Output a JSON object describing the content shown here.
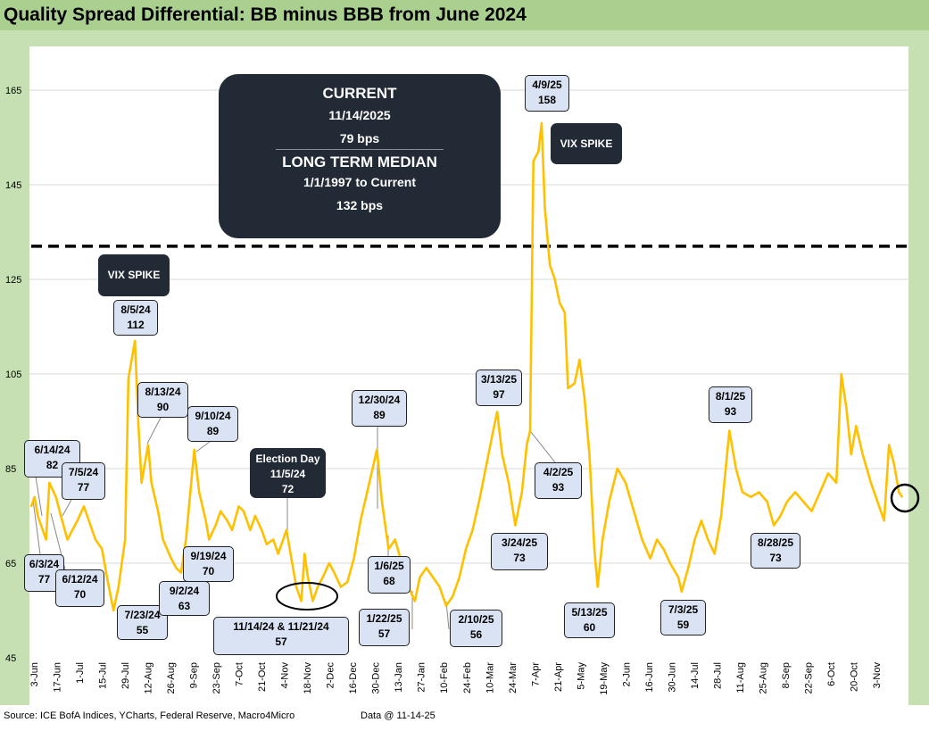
{
  "title": "Quality Spread Differential: BB minus BBB from June 2024",
  "source": "Source: ICE BofA Indices, YCharts, Federal Reserve, Macro4Micro",
  "data_as_of": "Data @ 11-14-25",
  "summary": {
    "current_heading": "CURRENT",
    "current_date": "11/14/2025",
    "current_value": "79 bps",
    "median_heading": "LONG TERM MEDIAN",
    "median_range": "1/1/1997 to Current",
    "median_value": "132 bps"
  },
  "vix_label_1": "VIX SPIKE",
  "vix_label_2": "VIX SPIKE",
  "election": {
    "line1": "Election Day",
    "line2": "11/5/24",
    "line3": "72"
  },
  "callouts": [
    {
      "date": "6/14/24",
      "value": "82"
    },
    {
      "date": "7/5/24",
      "value": "77"
    },
    {
      "date": "6/3/24",
      "value": "77"
    },
    {
      "date": "6/12/24",
      "value": "70"
    },
    {
      "date": "8/5/24",
      "value": "112"
    },
    {
      "date": "8/13/24",
      "value": "90"
    },
    {
      "date": "7/23/24",
      "value": "55"
    },
    {
      "date": "9/10/24",
      "value": "89"
    },
    {
      "date": "9/19/24",
      "value": "70"
    },
    {
      "date": "9/2/24",
      "value": "63"
    },
    {
      "date": "11/14/24 & 11/21/24",
      "value": "57"
    },
    {
      "date": "12/30/24",
      "value": "89"
    },
    {
      "date": "1/6/25",
      "value": "68"
    },
    {
      "date": "1/22/25",
      "value": "57"
    },
    {
      "date": "2/10/25",
      "value": "56"
    },
    {
      "date": "3/13/25",
      "value": "97"
    },
    {
      "date": "3/24/25",
      "value": "73"
    },
    {
      "date": "4/9/25",
      "value": "158"
    },
    {
      "date": "4/2/25",
      "value": "93"
    },
    {
      "date": "5/13/25",
      "value": "60"
    },
    {
      "date": "7/3/25",
      "value": "59"
    },
    {
      "date": "8/1/25",
      "value": "93"
    },
    {
      "date": "8/28/25",
      "value": "73"
    }
  ],
  "chart_data": {
    "type": "line",
    "title": "Quality Spread Differential: BB minus BBB from June 2024",
    "ylim": [
      45,
      170
    ],
    "yticks": [
      45,
      65,
      85,
      105,
      125,
      145,
      165
    ],
    "x_tick_labels": [
      "3-Jun",
      "17-Jun",
      "1-Jul",
      "15-Jul",
      "29-Jul",
      "12-Aug",
      "26-Aug",
      "9-Sep",
      "23-Sep",
      "7-Oct",
      "21-Oct",
      "4-Nov",
      "18-Nov",
      "2-Dec",
      "16-Dec",
      "30-Dec",
      "13-Jan",
      "27-Jan",
      "10-Feb",
      "24-Feb",
      "10-Mar",
      "24-Mar",
      "7-Apr",
      "21-Apr",
      "5-May",
      "19-May",
      "2-Jun",
      "16-Jun",
      "30-Jun",
      "14-Jul",
      "28-Jul",
      "11-Aug",
      "25-Aug",
      "8-Sep",
      "22-Sep",
      "6-Oct",
      "20-Oct",
      "3-Nov"
    ],
    "median_line": 132,
    "series": [
      {
        "color": "#ffc000",
        "points": [
          [
            "2024-06-03",
            77
          ],
          [
            "2024-06-05",
            79
          ],
          [
            "2024-06-07",
            75
          ],
          [
            "2024-06-10",
            72
          ],
          [
            "2024-06-12",
            70
          ],
          [
            "2024-06-14",
            82
          ],
          [
            "2024-06-18",
            79
          ],
          [
            "2024-06-21",
            75
          ],
          [
            "2024-06-25",
            70
          ],
          [
            "2024-06-28",
            72
          ],
          [
            "2024-07-01",
            74
          ],
          [
            "2024-07-05",
            77
          ],
          [
            "2024-07-09",
            73
          ],
          [
            "2024-07-12",
            70
          ],
          [
            "2024-07-16",
            68
          ],
          [
            "2024-07-19",
            62
          ],
          [
            "2024-07-23",
            55
          ],
          [
            "2024-07-26",
            60
          ],
          [
            "2024-07-30",
            70
          ],
          [
            "2024-08-01",
            104
          ],
          [
            "2024-08-05",
            112
          ],
          [
            "2024-08-07",
            95
          ],
          [
            "2024-08-09",
            82
          ],
          [
            "2024-08-13",
            90
          ],
          [
            "2024-08-15",
            82
          ],
          [
            "2024-08-19",
            76
          ],
          [
            "2024-08-22",
            70
          ],
          [
            "2024-08-27",
            66
          ],
          [
            "2024-08-30",
            64
          ],
          [
            "2024-09-02",
            63
          ],
          [
            "2024-09-05",
            70
          ],
          [
            "2024-09-10",
            89
          ],
          [
            "2024-09-13",
            80
          ],
          [
            "2024-09-17",
            74
          ],
          [
            "2024-09-19",
            70
          ],
          [
            "2024-09-23",
            73
          ],
          [
            "2024-09-26",
            76
          ],
          [
            "2024-09-30",
            74
          ],
          [
            "2024-10-03",
            72
          ],
          [
            "2024-10-07",
            77
          ],
          [
            "2024-10-10",
            76
          ],
          [
            "2024-10-14",
            72
          ],
          [
            "2024-10-17",
            75
          ],
          [
            "2024-10-21",
            72
          ],
          [
            "2024-10-24",
            69
          ],
          [
            "2024-10-28",
            70
          ],
          [
            "2024-10-31",
            67
          ],
          [
            "2024-11-05",
            72
          ],
          [
            "2024-11-08",
            66
          ],
          [
            "2024-11-11",
            60
          ],
          [
            "2024-11-14",
            57
          ],
          [
            "2024-11-16",
            67
          ],
          [
            "2024-11-18",
            62
          ],
          [
            "2024-11-21",
            57
          ],
          [
            "2024-11-24",
            60
          ],
          [
            "2024-11-27",
            62
          ],
          [
            "2024-12-01",
            65
          ],
          [
            "2024-12-04",
            63
          ],
          [
            "2024-12-08",
            60
          ],
          [
            "2024-12-12",
            61
          ],
          [
            "2024-12-16",
            66
          ],
          [
            "2024-12-20",
            74
          ],
          [
            "2024-12-24",
            80
          ],
          [
            "2024-12-30",
            89
          ],
          [
            "2025-01-02",
            78
          ],
          [
            "2025-01-06",
            68
          ],
          [
            "2025-01-10",
            70
          ],
          [
            "2025-01-14",
            65
          ],
          [
            "2025-01-18",
            60
          ],
          [
            "2025-01-22",
            57
          ],
          [
            "2025-01-25",
            62
          ],
          [
            "2025-01-29",
            64
          ],
          [
            "2025-02-02",
            62
          ],
          [
            "2025-02-06",
            60
          ],
          [
            "2025-02-10",
            56
          ],
          [
            "2025-02-14",
            58
          ],
          [
            "2025-02-18",
            62
          ],
          [
            "2025-02-22",
            68
          ],
          [
            "2025-02-26",
            72
          ],
          [
            "2025-03-02",
            78
          ],
          [
            "2025-03-06",
            85
          ],
          [
            "2025-03-10",
            92
          ],
          [
            "2025-03-13",
            97
          ],
          [
            "2025-03-16",
            88
          ],
          [
            "2025-03-20",
            82
          ],
          [
            "2025-03-24",
            73
          ],
          [
            "2025-03-28",
            80
          ],
          [
            "2025-03-31",
            90
          ],
          [
            "2025-04-02",
            93
          ],
          [
            "2025-04-04",
            150
          ],
          [
            "2025-04-07",
            152
          ],
          [
            "2025-04-09",
            158
          ],
          [
            "2025-04-11",
            140
          ],
          [
            "2025-04-14",
            128
          ],
          [
            "2025-04-17",
            125
          ],
          [
            "2025-04-20",
            120
          ],
          [
            "2025-04-23",
            118
          ],
          [
            "2025-04-25",
            102
          ],
          [
            "2025-04-29",
            103
          ],
          [
            "2025-05-02",
            108
          ],
          [
            "2025-05-05",
            100
          ],
          [
            "2025-05-08",
            88
          ],
          [
            "2025-05-11",
            68
          ],
          [
            "2025-05-13",
            60
          ],
          [
            "2025-05-16",
            70
          ],
          [
            "2025-05-20",
            78
          ],
          [
            "2025-05-25",
            85
          ],
          [
            "2025-05-30",
            82
          ],
          [
            "2025-06-04",
            76
          ],
          [
            "2025-06-09",
            70
          ],
          [
            "2025-06-14",
            66
          ],
          [
            "2025-06-18",
            70
          ],
          [
            "2025-06-22",
            68
          ],
          [
            "2025-06-26",
            65
          ],
          [
            "2025-07-01",
            62
          ],
          [
            "2025-07-03",
            59
          ],
          [
            "2025-07-07",
            64
          ],
          [
            "2025-07-11",
            70
          ],
          [
            "2025-07-15",
            74
          ],
          [
            "2025-07-19",
            70
          ],
          [
            "2025-07-23",
            67
          ],
          [
            "2025-07-27",
            75
          ],
          [
            "2025-08-01",
            93
          ],
          [
            "2025-08-05",
            85
          ],
          [
            "2025-08-09",
            80
          ],
          [
            "2025-08-14",
            79
          ],
          [
            "2025-08-19",
            80
          ],
          [
            "2025-08-24",
            78
          ],
          [
            "2025-08-28",
            73
          ],
          [
            "2025-09-01",
            75
          ],
          [
            "2025-09-05",
            78
          ],
          [
            "2025-09-10",
            80
          ],
          [
            "2025-09-15",
            78
          ],
          [
            "2025-09-20",
            76
          ],
          [
            "2025-09-25",
            80
          ],
          [
            "2025-09-30",
            84
          ],
          [
            "2025-10-05",
            82
          ],
          [
            "2025-10-08",
            105
          ],
          [
            "2025-10-11",
            98
          ],
          [
            "2025-10-14",
            88
          ],
          [
            "2025-10-17",
            94
          ],
          [
            "2025-10-21",
            88
          ],
          [
            "2025-10-26",
            82
          ],
          [
            "2025-10-30",
            78
          ],
          [
            "2025-11-03",
            74
          ],
          [
            "2025-11-06",
            90
          ],
          [
            "2025-11-09",
            86
          ],
          [
            "2025-11-12",
            80
          ],
          [
            "2025-11-14",
            79
          ]
        ]
      }
    ]
  }
}
